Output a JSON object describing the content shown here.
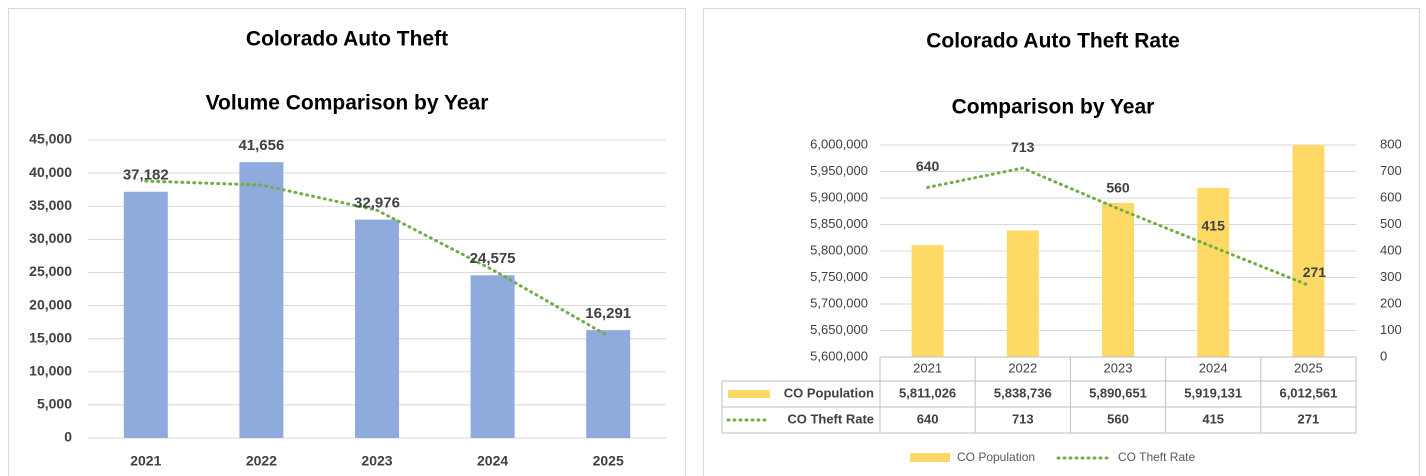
{
  "chart_data": [
    {
      "type": "bar",
      "title": "Colorado Auto Theft",
      "subtitle": "Volume Comparison by Year",
      "categories": [
        "2021",
        "2022",
        "2023",
        "2024",
        "2025"
      ],
      "values": [
        37182,
        41656,
        32976,
        24575,
        16291
      ],
      "value_labels": [
        "37,182",
        "41,656",
        "32,976",
        "24,575",
        "16,291"
      ],
      "color": "#8faadc",
      "trend_values": [
        38800,
        38200,
        34400,
        25400,
        15400
      ],
      "trend_color": "#70ad47",
      "ylim": [
        0,
        45000
      ],
      "yticks": [
        0,
        {
          "value": 5000,
          "label": "5,000"
        },
        {
          "value": 10000,
          "label": "10,000"
        },
        {
          "value": 15000,
          "label": "15,000"
        },
        {
          "value": 20000,
          "label": "20,000"
        },
        {
          "value": 25000,
          "label": "25,000"
        },
        {
          "value": 30000,
          "label": "30,000"
        },
        {
          "value": 35000,
          "label": "35,000"
        },
        {
          "value": 40000,
          "label": "40,000"
        },
        {
          "value": 45000,
          "label": "45,000"
        }
      ],
      "grid": true
    },
    {
      "type": "combo",
      "title": "Colorado Auto Theft Rate",
      "subtitle": "Comparison by Year",
      "categories": [
        "2021",
        "2022",
        "2023",
        "2024",
        "2025"
      ],
      "series": [
        {
          "name": "CO Population",
          "type": "bar",
          "color": "#ffd966",
          "values": [
            5811026,
            5838736,
            5890651,
            5919131,
            6012561
          ],
          "value_labels": [
            "5,811,026",
            "5,838,736",
            "5,890,651",
            "5,919,131",
            "6,012,561"
          ]
        },
        {
          "name": "CO Theft Rate",
          "type": "line",
          "axis": "y2",
          "color": "#70ad47",
          "values": [
            640,
            713,
            560,
            415,
            271
          ]
        }
      ],
      "ylim": [
        5600000,
        6000000
      ],
      "yticks": [
        {
          "value": 5600000,
          "label": "5,600,000"
        },
        {
          "value": 5650000,
          "label": "5,650,000"
        },
        {
          "value": 5700000,
          "label": "5,700,000"
        },
        {
          "value": 5750000,
          "label": "5,750,000"
        },
        {
          "value": 5800000,
          "label": "5,800,000"
        },
        {
          "value": 5850000,
          "label": "5,850,000"
        },
        {
          "value": 5900000,
          "label": "5,900,000"
        },
        {
          "value": 5950000,
          "label": "5,950,000"
        },
        {
          "value": 6000000,
          "label": "6,000,000"
        }
      ],
      "y2lim": [
        0,
        800
      ],
      "y2ticks": [
        0,
        100,
        200,
        300,
        400,
        500,
        600,
        700,
        800
      ],
      "grid": true,
      "data_table": true,
      "legend": "bottom"
    }
  ]
}
